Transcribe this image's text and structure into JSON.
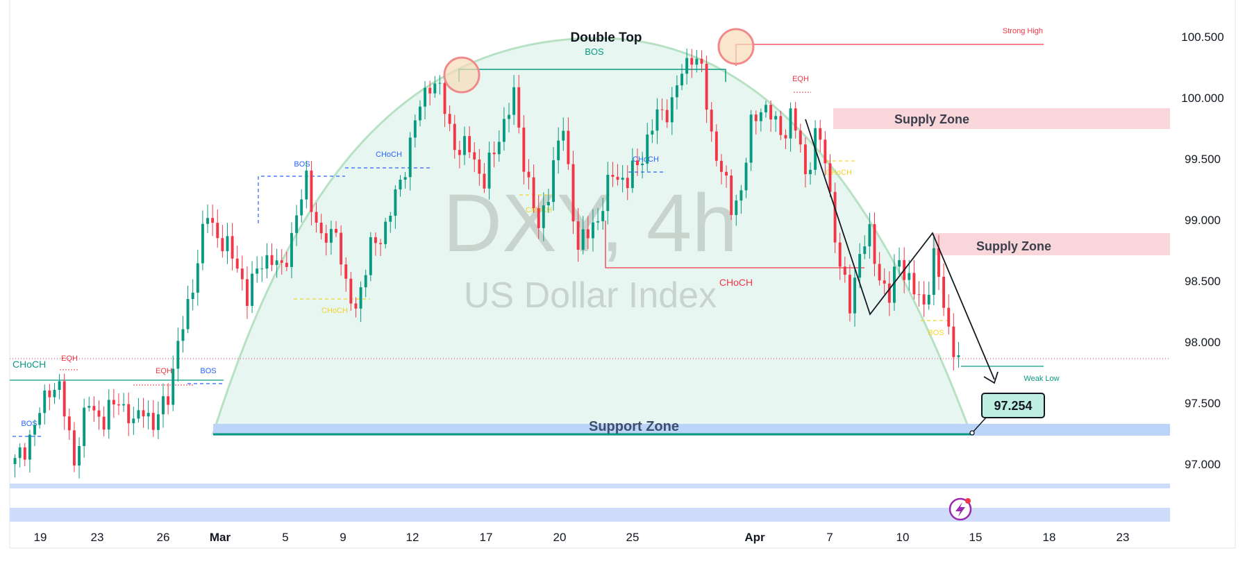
{
  "chart_data": {
    "type": "candlestick",
    "watermark": {
      "symbol": "DXY, 4h",
      "name": "US Dollar Index"
    },
    "title": "Double Top",
    "y_ticks": [
      "100.500",
      "100.000",
      "99.500",
      "99.000",
      "98.500",
      "98.000",
      "97.500",
      "97.000"
    ],
    "y_tick_values": [
      100.5,
      100.0,
      99.5,
      99.0,
      98.5,
      98.0,
      97.5,
      97.0
    ],
    "ylim": [
      96.48,
      100.95
    ],
    "x_ticks": [
      {
        "label": "19",
        "bold": false
      },
      {
        "label": "23",
        "bold": false
      },
      {
        "label": "26",
        "bold": false
      },
      {
        "label": "Mar",
        "bold": true
      },
      {
        "label": "5",
        "bold": false
      },
      {
        "label": "9",
        "bold": false
      },
      {
        "label": "12",
        "bold": false
      },
      {
        "label": "17",
        "bold": false
      },
      {
        "label": "20",
        "bold": false
      },
      {
        "label": "25",
        "bold": false
      },
      {
        "label": "Apr",
        "bold": true
      },
      {
        "label": "7",
        "bold": false
      },
      {
        "label": "10",
        "bold": false
      },
      {
        "label": "15",
        "bold": false
      },
      {
        "label": "18",
        "bold": false
      },
      {
        "label": "23",
        "bold": false
      }
    ],
    "candle_keyprices": [
      [
        0,
        97.0
      ],
      [
        4,
        97.3
      ],
      [
        7,
        97.65
      ],
      [
        9,
        97.6
      ],
      [
        12,
        97.05
      ],
      [
        15,
        97.5
      ],
      [
        18,
        97.35
      ],
      [
        21,
        97.55
      ],
      [
        24,
        97.3
      ],
      [
        26,
        97.5
      ],
      [
        28,
        97.28
      ],
      [
        31,
        97.6
      ],
      [
        35,
        98.3
      ],
      [
        39,
        99.05
      ],
      [
        42,
        98.8
      ],
      [
        45,
        98.65
      ],
      [
        47,
        98.35
      ],
      [
        50,
        98.7
      ],
      [
        54,
        98.6
      ],
      [
        57,
        99.0
      ],
      [
        59,
        99.35
      ],
      [
        62,
        98.8
      ],
      [
        65,
        98.95
      ],
      [
        67,
        98.4
      ],
      [
        69,
        98.3
      ],
      [
        72,
        98.75
      ],
      [
        75,
        98.95
      ],
      [
        78,
        99.3
      ],
      [
        81,
        99.8
      ],
      [
        84,
        100.15
      ],
      [
        86,
        100.05
      ],
      [
        88,
        99.75
      ],
      [
        90,
        99.55
      ],
      [
        92,
        99.6
      ],
      [
        95,
        99.3
      ],
      [
        98,
        99.7
      ],
      [
        101,
        100.0
      ],
      [
        103,
        99.5
      ],
      [
        106,
        98.9
      ],
      [
        109,
        99.45
      ],
      [
        111,
        99.75
      ],
      [
        114,
        98.75
      ],
      [
        116,
        98.9
      ],
      [
        119,
        99.1
      ],
      [
        121,
        99.4
      ],
      [
        124,
        99.3
      ],
      [
        127,
        99.55
      ],
      [
        130,
        99.85
      ],
      [
        133,
        99.95
      ],
      [
        135,
        100.2
      ],
      [
        137,
        100.38
      ],
      [
        139,
        100.2
      ],
      [
        141,
        99.7
      ],
      [
        143,
        99.4
      ],
      [
        145,
        99.1
      ],
      [
        147,
        99.25
      ],
      [
        149,
        99.75
      ],
      [
        151,
        99.95
      ],
      [
        153,
        99.85
      ],
      [
        155,
        99.7
      ],
      [
        157,
        99.85
      ],
      [
        159,
        99.6
      ],
      [
        160,
        99.35
      ],
      [
        162,
        99.7
      ],
      [
        164,
        99.5
      ],
      [
        167,
        98.6
      ],
      [
        169,
        98.3
      ],
      [
        171,
        98.75
      ],
      [
        173,
        98.85
      ],
      [
        175,
        98.55
      ],
      [
        177,
        98.35
      ],
      [
        179,
        98.7
      ],
      [
        182,
        98.4
      ],
      [
        184,
        98.3
      ],
      [
        186,
        98.7
      ],
      [
        189,
        98.1
      ],
      [
        191,
        97.85
      ]
    ],
    "zones": [
      {
        "label": "Supply Zone",
        "price_top": 99.9,
        "price_bottom": 99.73
      },
      {
        "label": "Supply Zone",
        "price_top": 98.9,
        "price_bottom": 98.73
      },
      {
        "label": "Support Zone",
        "price_top": 97.35,
        "price_bottom": 97.25
      }
    ],
    "target": {
      "label": "97.254",
      "price": 97.254
    },
    "current_price": 97.86,
    "annotations": {
      "double_top": "Double Top",
      "bos": "BOS",
      "choch": "CHoCH",
      "eqh": "EQH",
      "strong_high": "Strong High",
      "weak_low": "Weak Low"
    },
    "colors": {
      "up": "#089981",
      "down": "#f23645",
      "supply": "#f9d6da",
      "support": "#bbd4f7",
      "dome_fill": "#e8f6f1",
      "dome_stroke": "#b7e1c3",
      "target_fill": "#bdeee0",
      "blue": "#2962ff",
      "yellow": "#f2d42c",
      "watermark": "#c9d3ce"
    }
  }
}
